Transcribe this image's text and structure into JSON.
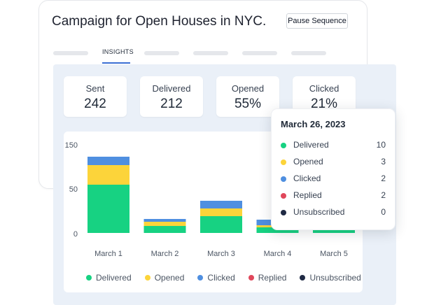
{
  "header": {
    "title": "Campaign for Open Houses in NYC.",
    "pause_label": "Pause Sequence",
    "active_tab": "INSIGHTS"
  },
  "stats": [
    {
      "label": "Sent",
      "value": "242"
    },
    {
      "label": "Delivered",
      "value": "212"
    },
    {
      "label": "Opened",
      "value": "55%"
    },
    {
      "label": "Clicked",
      "value": "21%"
    }
  ],
  "colors": {
    "delivered": "#17d282",
    "opened": "#fcd43a",
    "clicked": "#4f8fe0",
    "replied": "#e0475b",
    "unsubscribed": "#1f2a44",
    "accent": "#3b6fd4"
  },
  "chart_data": {
    "type": "bar",
    "stacked": true,
    "categories": [
      "March 1",
      "March 2",
      "March 3",
      "March 4",
      "March 5"
    ],
    "y_ticks": [
      "150",
      "50",
      "0"
    ],
    "series": [
      {
        "name": "Delivered",
        "values": [
          69,
          10,
          24,
          8,
          8
        ]
      },
      {
        "name": "Opened",
        "values": [
          28,
          6,
          11,
          3,
          0
        ]
      },
      {
        "name": "Clicked",
        "values": [
          12,
          4,
          11,
          8,
          0
        ]
      },
      {
        "name": "Replied",
        "values": [
          0,
          0,
          0,
          0,
          0
        ]
      },
      {
        "name": "Unsubscribed",
        "values": [
          0,
          0,
          0,
          0,
          0
        ]
      }
    ],
    "legend": [
      "Delivered",
      "Opened",
      "Clicked",
      "Replied",
      "Unsubscribed"
    ]
  },
  "tooltip": {
    "date": "March 26, 2023",
    "rows": [
      {
        "label": "Delivered",
        "value": "10"
      },
      {
        "label": "Opened",
        "value": "3"
      },
      {
        "label": "Clicked",
        "value": "2"
      },
      {
        "label": "Replied",
        "value": "2"
      },
      {
        "label": "Unsubscribed",
        "value": "0"
      }
    ]
  }
}
